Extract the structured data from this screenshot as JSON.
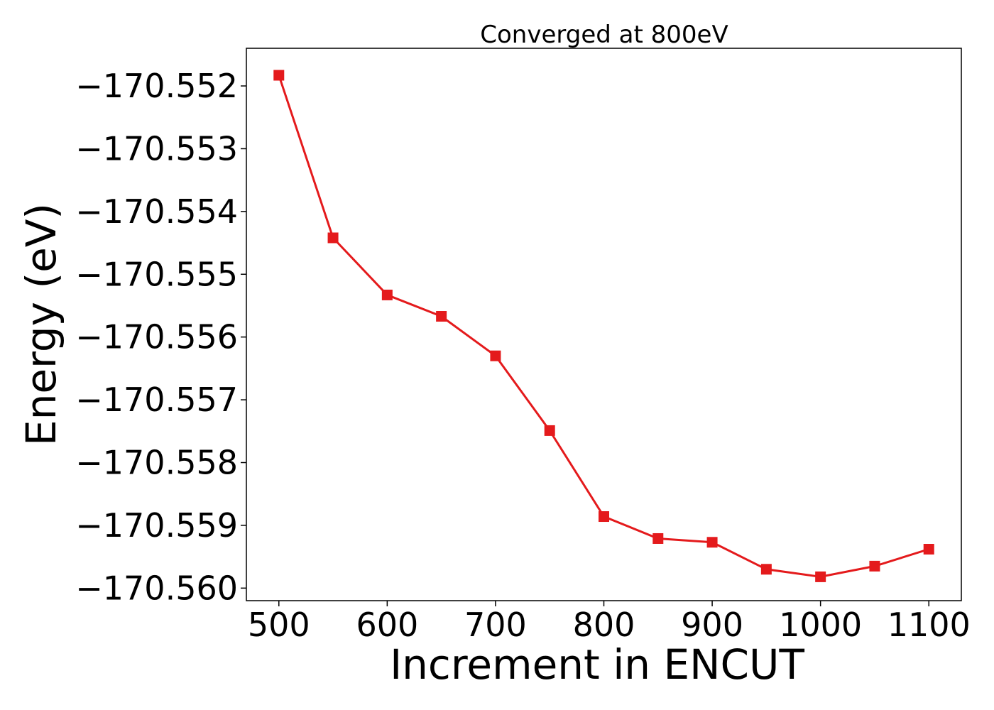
{
  "chart_data": {
    "type": "line",
    "title": "Converged at 800eV",
    "xlabel": "Increment in ENCUT",
    "ylabel": "Energy (eV)",
    "x": [
      500,
      550,
      600,
      650,
      700,
      750,
      800,
      850,
      900,
      950,
      1000,
      1050,
      1100
    ],
    "series": [
      {
        "values": [
          -170.55183,
          -170.55442,
          -170.55533,
          -170.55567,
          -170.5563,
          -170.55749,
          -170.55886,
          -170.55921,
          -170.55927,
          -170.5597,
          -170.55982,
          -170.55965,
          -170.55938
        ],
        "color": "#e41a1c",
        "marker": "square"
      }
    ],
    "xlim": [
      470,
      1130
    ],
    "ylim": [
      -170.5602,
      -170.5514
    ],
    "xticks": [
      500,
      600,
      700,
      800,
      900,
      1000,
      1100
    ],
    "yticks": [
      -170.552,
      -170.553,
      -170.554,
      -170.555,
      -170.556,
      -170.557,
      -170.558,
      -170.559,
      -170.56
    ],
    "xtick_labels": [
      "500",
      "600",
      "700",
      "800",
      "900",
      "1000",
      "1100"
    ],
    "ytick_labels": [
      "−170.552",
      "−170.553",
      "−170.554",
      "−170.555",
      "−170.556",
      "−170.557",
      "−170.558",
      "−170.559",
      "−170.560"
    ],
    "grid": false,
    "legend": "none"
  }
}
